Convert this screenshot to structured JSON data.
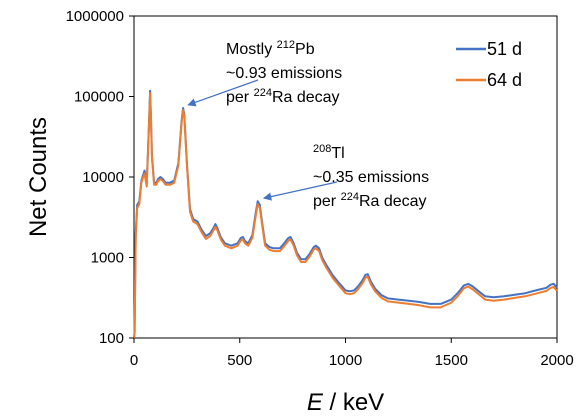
{
  "chart_data": {
    "type": "line",
    "title": "",
    "xlabel_italic": "E",
    "xlabel_rest": " / keV",
    "ylabel": "Net Counts",
    "xlim": [
      0,
      2000
    ],
    "ylim": [
      100,
      1000000
    ],
    "yscale": "log",
    "x_ticks": [
      "0",
      "500",
      "1000",
      "1500",
      "2000"
    ],
    "y_ticks": [
      "100",
      "1000",
      "10000",
      "100000",
      "1000000"
    ],
    "grid": false,
    "legend_position": "top-right",
    "series": [
      {
        "name": "51 d",
        "color": "#4472C4",
        "points": [
          [
            0,
            100
          ],
          [
            3,
            120
          ],
          [
            8,
            2000
          ],
          [
            15,
            4500
          ],
          [
            25,
            5000
          ],
          [
            35,
            9000
          ],
          [
            40,
            10000
          ],
          [
            50,
            12000
          ],
          [
            60,
            8000
          ],
          [
            70,
            40000
          ],
          [
            76,
            118000
          ],
          [
            80,
            60000
          ],
          [
            85,
            18000
          ],
          [
            95,
            8500
          ],
          [
            105,
            8500
          ],
          [
            115,
            9500
          ],
          [
            125,
            10000
          ],
          [
            135,
            9500
          ],
          [
            150,
            8500
          ],
          [
            170,
            8500
          ],
          [
            190,
            9000
          ],
          [
            210,
            15000
          ],
          [
            225,
            50000
          ],
          [
            232,
            72000
          ],
          [
            238,
            60000
          ],
          [
            250,
            15000
          ],
          [
            265,
            4000
          ],
          [
            280,
            3000
          ],
          [
            300,
            2800
          ],
          [
            320,
            2200
          ],
          [
            340,
            1850
          ],
          [
            360,
            2000
          ],
          [
            375,
            2300
          ],
          [
            385,
            2600
          ],
          [
            395,
            2300
          ],
          [
            410,
            1800
          ],
          [
            430,
            1500
          ],
          [
            460,
            1400
          ],
          [
            490,
            1500
          ],
          [
            505,
            1750
          ],
          [
            515,
            1800
          ],
          [
            525,
            1600
          ],
          [
            540,
            1500
          ],
          [
            560,
            1900
          ],
          [
            575,
            3500
          ],
          [
            585,
            5000
          ],
          [
            595,
            4500
          ],
          [
            605,
            2800
          ],
          [
            620,
            1500
          ],
          [
            640,
            1350
          ],
          [
            660,
            1300
          ],
          [
            690,
            1300
          ],
          [
            710,
            1500
          ],
          [
            730,
            1750
          ],
          [
            740,
            1800
          ],
          [
            755,
            1500
          ],
          [
            770,
            1150
          ],
          [
            790,
            950
          ],
          [
            810,
            950
          ],
          [
            830,
            1100
          ],
          [
            850,
            1350
          ],
          [
            860,
            1400
          ],
          [
            875,
            1300
          ],
          [
            890,
            1000
          ],
          [
            910,
            800
          ],
          [
            940,
            600
          ],
          [
            970,
            480
          ],
          [
            1000,
            390
          ],
          [
            1020,
            380
          ],
          [
            1040,
            390
          ],
          [
            1060,
            440
          ],
          [
            1080,
            520
          ],
          [
            1095,
            610
          ],
          [
            1105,
            620
          ],
          [
            1120,
            500
          ],
          [
            1140,
            410
          ],
          [
            1170,
            340
          ],
          [
            1200,
            310
          ],
          [
            1250,
            300
          ],
          [
            1300,
            290
          ],
          [
            1350,
            280
          ],
          [
            1400,
            265
          ],
          [
            1450,
            265
          ],
          [
            1500,
            300
          ],
          [
            1530,
            360
          ],
          [
            1560,
            450
          ],
          [
            1580,
            470
          ],
          [
            1600,
            440
          ],
          [
            1630,
            380
          ],
          [
            1660,
            330
          ],
          [
            1700,
            320
          ],
          [
            1750,
            330
          ],
          [
            1800,
            345
          ],
          [
            1850,
            360
          ],
          [
            1900,
            390
          ],
          [
            1950,
            420
          ],
          [
            1970,
            460
          ],
          [
            1985,
            470
          ],
          [
            2000,
            420
          ]
        ]
      },
      {
        "name": "64 d",
        "color": "#ED7D31",
        "points": [
          [
            0,
            100
          ],
          [
            3,
            115
          ],
          [
            8,
            1800
          ],
          [
            15,
            4100
          ],
          [
            25,
            4600
          ],
          [
            35,
            8500
          ],
          [
            40,
            9500
          ],
          [
            50,
            11000
          ],
          [
            60,
            7600
          ],
          [
            70,
            38000
          ],
          [
            76,
            110000
          ],
          [
            80,
            56000
          ],
          [
            85,
            17000
          ],
          [
            95,
            8000
          ],
          [
            105,
            8000
          ],
          [
            115,
            9000
          ],
          [
            125,
            9400
          ],
          [
            135,
            9000
          ],
          [
            150,
            8000
          ],
          [
            170,
            8000
          ],
          [
            190,
            8500
          ],
          [
            210,
            14000
          ],
          [
            225,
            47000
          ],
          [
            232,
            68000
          ],
          [
            238,
            56000
          ],
          [
            250,
            14000
          ],
          [
            265,
            3700
          ],
          [
            280,
            2800
          ],
          [
            300,
            2600
          ],
          [
            320,
            2050
          ],
          [
            340,
            1700
          ],
          [
            360,
            1850
          ],
          [
            375,
            2150
          ],
          [
            385,
            2400
          ],
          [
            395,
            2150
          ],
          [
            410,
            1680
          ],
          [
            430,
            1400
          ],
          [
            460,
            1300
          ],
          [
            490,
            1400
          ],
          [
            505,
            1630
          ],
          [
            515,
            1680
          ],
          [
            525,
            1500
          ],
          [
            540,
            1400
          ],
          [
            560,
            1750
          ],
          [
            575,
            3200
          ],
          [
            585,
            4600
          ],
          [
            595,
            4150
          ],
          [
            605,
            2600
          ],
          [
            620,
            1400
          ],
          [
            640,
            1250
          ],
          [
            660,
            1200
          ],
          [
            690,
            1200
          ],
          [
            710,
            1380
          ],
          [
            730,
            1620
          ],
          [
            740,
            1680
          ],
          [
            755,
            1400
          ],
          [
            770,
            1070
          ],
          [
            790,
            880
          ],
          [
            810,
            880
          ],
          [
            830,
            1020
          ],
          [
            850,
            1260
          ],
          [
            860,
            1300
          ],
          [
            875,
            1200
          ],
          [
            890,
            930
          ],
          [
            910,
            740
          ],
          [
            940,
            555
          ],
          [
            970,
            445
          ],
          [
            1000,
            360
          ],
          [
            1020,
            350
          ],
          [
            1040,
            360
          ],
          [
            1060,
            405
          ],
          [
            1080,
            480
          ],
          [
            1095,
            565
          ],
          [
            1105,
            575
          ],
          [
            1120,
            465
          ],
          [
            1140,
            380
          ],
          [
            1170,
            315
          ],
          [
            1200,
            285
          ],
          [
            1250,
            275
          ],
          [
            1300,
            265
          ],
          [
            1350,
            255
          ],
          [
            1400,
            240
          ],
          [
            1450,
            240
          ],
          [
            1500,
            275
          ],
          [
            1530,
            330
          ],
          [
            1560,
            415
          ],
          [
            1580,
            435
          ],
          [
            1600,
            405
          ],
          [
            1630,
            350
          ],
          [
            1660,
            300
          ],
          [
            1700,
            290
          ],
          [
            1750,
            300
          ],
          [
            1800,
            315
          ],
          [
            1850,
            330
          ],
          [
            1900,
            355
          ],
          [
            1950,
            385
          ],
          [
            1970,
            420
          ],
          [
            1985,
            430
          ],
          [
            2000,
            385
          ]
        ]
      }
    ],
    "annotations": [
      {
        "line1": "Mostly ",
        "line1_sup": "212",
        "line1_end": "Pb",
        "line2": "~0.93 emissions",
        "line3_pre": "per ",
        "line3_sup": "224",
        "line3_end": "Ra decay",
        "arrow_to": [
          232,
          72000
        ]
      },
      {
        "line1": "",
        "line1_sup": "208",
        "line1_end": "Tl",
        "line2": "~0.35 emissions",
        "line3_pre": "per ",
        "line3_sup": "224",
        "line3_end": "Ra decay",
        "arrow_to": [
          590,
          5000
        ]
      }
    ]
  }
}
